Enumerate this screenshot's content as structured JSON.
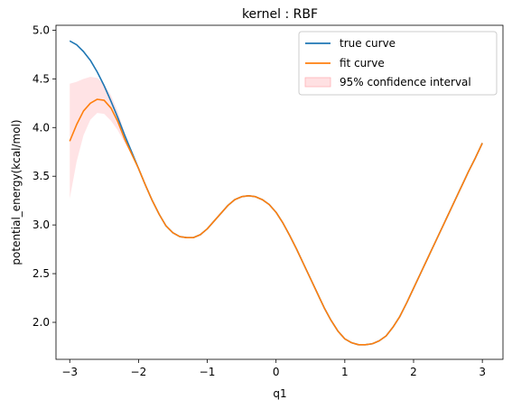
{
  "chart_data": {
    "type": "line",
    "title": "kernel : RBF",
    "xlabel": "q1",
    "ylabel": "potential_energy(kcal/mol)",
    "xlim": [
      -3.2,
      3.3
    ],
    "ylim": [
      1.62,
      5.05
    ],
    "xticks": [
      -3,
      -2,
      -1,
      0,
      1,
      2,
      3
    ],
    "xtick_labels": [
      "−3",
      "−2",
      "−1",
      "0",
      "1",
      "2",
      "3"
    ],
    "yticks": [
      2.0,
      2.5,
      3.0,
      3.5,
      4.0,
      4.5,
      5.0
    ],
    "ytick_labels": [
      "2.0",
      "2.5",
      "3.0",
      "3.5",
      "4.0",
      "4.5",
      "5.0"
    ],
    "grid": false,
    "legend_position": "upper-right",
    "series": [
      {
        "name": "true curve",
        "color": "#1f77b4",
        "x": [
          -3.0,
          -2.9,
          -2.8,
          -2.7,
          -2.6,
          -2.5,
          -2.4,
          -2.3,
          -2.2,
          -2.1,
          -2.0,
          -1.9,
          -1.8,
          -1.7,
          -1.6,
          -1.5,
          -1.4,
          -1.3,
          -1.2,
          -1.1,
          -1.0,
          -0.9,
          -0.8,
          -0.7,
          -0.6,
          -0.5,
          -0.4,
          -0.3,
          -0.2,
          -0.1,
          0.0,
          0.1,
          0.2,
          0.3,
          0.4,
          0.5,
          0.6,
          0.7,
          0.8,
          0.9,
          1.0,
          1.1,
          1.2,
          1.3,
          1.4,
          1.5,
          1.6,
          1.7,
          1.8,
          1.9,
          2.0,
          2.1,
          2.2,
          2.3,
          2.4,
          2.5,
          2.6,
          2.7,
          2.8,
          2.9,
          3.0
        ],
        "y": [
          4.89,
          4.85,
          4.78,
          4.69,
          4.57,
          4.43,
          4.27,
          4.1,
          3.92,
          3.75,
          3.58,
          3.41,
          3.25,
          3.11,
          2.99,
          2.92,
          2.88,
          2.87,
          2.87,
          2.9,
          2.96,
          3.04,
          3.12,
          3.2,
          3.26,
          3.29,
          3.3,
          3.29,
          3.26,
          3.21,
          3.13,
          3.02,
          2.89,
          2.75,
          2.6,
          2.45,
          2.3,
          2.15,
          2.02,
          1.91,
          1.83,
          1.79,
          1.77,
          1.77,
          1.78,
          1.81,
          1.86,
          1.95,
          2.06,
          2.2,
          2.35,
          2.5,
          2.65,
          2.8,
          2.95,
          3.1,
          3.25,
          3.4,
          3.55,
          3.69,
          3.84
        ]
      },
      {
        "name": "fit curve",
        "color": "#ff7f0e",
        "x": [
          -3.0,
          -2.9,
          -2.8,
          -2.7,
          -2.6,
          -2.5,
          -2.4,
          -2.3,
          -2.2,
          -2.1,
          -2.0,
          -1.9,
          -1.8,
          -1.7,
          -1.6,
          -1.5,
          -1.4,
          -1.3,
          -1.2,
          -1.1,
          -1.0,
          -0.9,
          -0.8,
          -0.7,
          -0.6,
          -0.5,
          -0.4,
          -0.3,
          -0.2,
          -0.1,
          0.0,
          0.1,
          0.2,
          0.3,
          0.4,
          0.5,
          0.6,
          0.7,
          0.8,
          0.9,
          1.0,
          1.1,
          1.2,
          1.3,
          1.4,
          1.5,
          1.6,
          1.7,
          1.8,
          1.9,
          2.0,
          2.1,
          2.2,
          2.3,
          2.4,
          2.5,
          2.6,
          2.7,
          2.8,
          2.9,
          3.0
        ],
        "y": [
          3.86,
          4.03,
          4.17,
          4.25,
          4.29,
          4.28,
          4.2,
          4.06,
          3.88,
          3.73,
          3.58,
          3.41,
          3.25,
          3.11,
          2.99,
          2.92,
          2.88,
          2.87,
          2.87,
          2.9,
          2.96,
          3.04,
          3.12,
          3.2,
          3.26,
          3.29,
          3.3,
          3.29,
          3.26,
          3.21,
          3.13,
          3.02,
          2.89,
          2.75,
          2.6,
          2.45,
          2.3,
          2.15,
          2.02,
          1.91,
          1.83,
          1.79,
          1.77,
          1.77,
          1.78,
          1.81,
          1.86,
          1.95,
          2.06,
          2.2,
          2.35,
          2.5,
          2.65,
          2.8,
          2.95,
          3.1,
          3.25,
          3.4,
          3.55,
          3.69,
          3.84
        ]
      }
    ],
    "confidence_interval": {
      "name": "95% confidence interval",
      "color": "#ffb3b8",
      "x": [
        -3.0,
        -2.9,
        -2.8,
        -2.7,
        -2.6,
        -2.5,
        -2.4,
        -2.3,
        -2.2,
        -2.1,
        -2.0
      ],
      "lower": [
        3.27,
        3.65,
        3.92,
        4.08,
        4.15,
        4.14,
        4.07,
        3.97,
        3.84,
        3.72,
        3.58
      ],
      "upper": [
        4.45,
        4.47,
        4.5,
        4.52,
        4.51,
        4.44,
        4.33,
        4.16,
        3.94,
        3.76,
        3.58
      ]
    }
  }
}
